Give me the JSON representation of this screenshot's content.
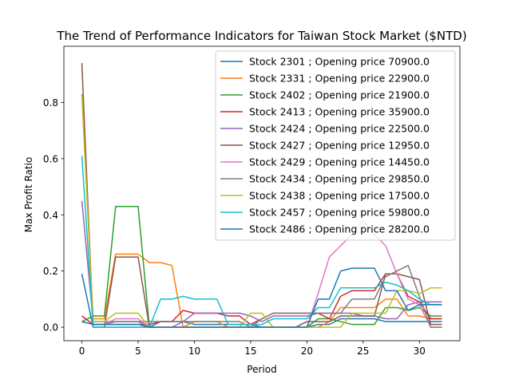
{
  "chart_data": {
    "type": "line",
    "title": "The Trend of Performance Indicators for Taiwan Stock Market ($NTD)",
    "xlabel": "Period",
    "ylabel": "Max Profit Ratio",
    "xlim": [
      -1.6,
      33.6
    ],
    "ylim": [
      -0.048,
      1.0
    ],
    "xticks": [
      0,
      5,
      10,
      15,
      20,
      25,
      30
    ],
    "yticks": [
      0.0,
      0.2,
      0.4,
      0.6,
      0.8
    ],
    "legend_position": "upper-right",
    "grid": false,
    "series": [
      {
        "name": "Stock 2301 ; Opening price 70900.0",
        "color": "#1f77b4",
        "values": [
          0.19,
          0,
          0,
          0,
          0,
          0,
          0,
          0.02,
          0.02,
          0.02,
          0.01,
          0.01,
          0.01,
          0.01,
          0.01,
          0.01,
          0,
          0,
          0,
          0,
          0,
          0.01,
          0.01,
          0.03,
          0.03,
          0.03,
          0.03,
          0.02,
          0.02,
          0.02,
          0.02,
          0.02,
          0.02
        ]
      },
      {
        "name": "Stock 2331 ; Opening price 22900.0",
        "color": "#ff7f0e",
        "values": [
          0.83,
          0.03,
          0.03,
          0.26,
          0.26,
          0.26,
          0.23,
          0.23,
          0.22,
          0,
          0.02,
          0.02,
          0.02,
          0,
          0,
          0,
          0,
          0,
          0,
          0,
          0,
          0,
          0.02,
          0.07,
          0.07,
          0.07,
          0.07,
          0.1,
          0.1,
          0.04,
          0.04,
          0.03,
          0.03
        ]
      },
      {
        "name": "Stock 2402 ; Opening price 21900.0",
        "color": "#2ca02c",
        "values": [
          0.02,
          0.04,
          0.04,
          0.43,
          0.43,
          0.43,
          0,
          0,
          0,
          0,
          0,
          0,
          0,
          0,
          0,
          0,
          0,
          0,
          0,
          0,
          0,
          0.03,
          0.03,
          0.02,
          0.01,
          0.01,
          0.01,
          0.07,
          0.07,
          0.06,
          0.07,
          0.04,
          0.04
        ]
      },
      {
        "name": "Stock 2413 ; Opening price 35900.0",
        "color": "#d62728",
        "values": [
          0.04,
          0.01,
          0.01,
          0.01,
          0.01,
          0.01,
          0.01,
          0.02,
          0.02,
          0.06,
          0.05,
          0.05,
          0.05,
          0.04,
          0.04,
          0.01,
          0.03,
          0.05,
          0.05,
          0.05,
          0.05,
          0.05,
          0.03,
          0.11,
          0.13,
          0.13,
          0.13,
          0.19,
          0.19,
          0.11,
          0.09,
          0.03,
          0.03
        ]
      },
      {
        "name": "Stock 2424 ; Opening price 22500.0",
        "color": "#9467bd",
        "values": [
          0.45,
          0.02,
          0.02,
          0.02,
          0.02,
          0.02,
          0,
          0,
          0,
          0.02,
          0.05,
          0.05,
          0.05,
          0.05,
          0.05,
          0.04,
          0.02,
          0.04,
          0.04,
          0.04,
          0.04,
          0.05,
          0.05,
          0.05,
          0.05,
          0.04,
          0.04,
          0.03,
          0.03,
          0.08,
          0.09,
          0.09,
          0.09
        ]
      },
      {
        "name": "Stock 2427 ; Opening price 12950.0",
        "color": "#8c564b",
        "values": [
          0.94,
          0,
          0,
          0.25,
          0.25,
          0.25,
          0,
          0,
          0,
          0,
          0,
          0,
          0,
          0,
          0,
          0,
          0,
          0,
          0,
          0,
          0.02,
          0.02,
          0.02,
          0.04,
          0.04,
          0.04,
          0.04,
          0.19,
          0.19,
          0.18,
          0.17,
          0.01,
          0.01
        ]
      },
      {
        "name": "Stock 2429 ; Opening price 14450.0",
        "color": "#e377c2",
        "values": [
          0.02,
          0.01,
          0.01,
          0.03,
          0.03,
          0.03,
          0,
          0,
          0,
          0,
          0,
          0,
          0,
          0,
          0,
          0,
          0,
          0,
          0,
          0,
          0,
          0.12,
          0.25,
          0.29,
          0.33,
          0.38,
          0.33,
          0.29,
          0.19,
          0.1,
          0.08,
          0,
          0
        ]
      },
      {
        "name": "Stock 2434 ; Opening price 29850.0",
        "color": "#7f7f7f",
        "values": [
          0.02,
          0.01,
          0.01,
          0.02,
          0.02,
          0.02,
          0.02,
          0.02,
          0.02,
          0.02,
          0.02,
          0.02,
          0.02,
          0.02,
          0.02,
          0,
          0.03,
          0.05,
          0.05,
          0.05,
          0.05,
          0.05,
          0.05,
          0.05,
          0.1,
          0.1,
          0.1,
          0.18,
          0.2,
          0.22,
          0.11,
          0,
          0
        ]
      },
      {
        "name": "Stock 2438 ; Opening price 17500.0",
        "color": "#bcbd22",
        "values": [
          0.83,
          0.02,
          0.02,
          0.05,
          0.05,
          0.05,
          0,
          0,
          0,
          0,
          0,
          0,
          0,
          0,
          0,
          0.05,
          0.05,
          0,
          0,
          0,
          0,
          0,
          0,
          0,
          0.05,
          0.05,
          0.05,
          0.05,
          0.13,
          0.13,
          0.12,
          0.14,
          0.14
        ]
      },
      {
        "name": "Stock 2457 ; Opening price 59800.0",
        "color": "#17becf",
        "values": [
          0.61,
          0,
          0,
          0,
          0,
          0,
          0,
          0.1,
          0.1,
          0.11,
          0.1,
          0.1,
          0.1,
          0.01,
          0.01,
          0.01,
          0.01,
          0.03,
          0.03,
          0.03,
          0.03,
          0.07,
          0.07,
          0.14,
          0.14,
          0.14,
          0.14,
          0.16,
          0.15,
          0.13,
          0.1,
          0.08,
          0.08
        ]
      },
      {
        "name": "Stock 2486 ; Opening price 28200.0",
        "color": "#1f77b4",
        "values": [
          0.02,
          0.01,
          0.01,
          0.01,
          0.01,
          0.01,
          0,
          0,
          0,
          0,
          0,
          0,
          0,
          0,
          0,
          0,
          0,
          0,
          0,
          0,
          0,
          0.1,
          0.1,
          0.2,
          0.21,
          0.21,
          0.21,
          0.13,
          0.13,
          0.06,
          0.08,
          0.08,
          0.08
        ]
      }
    ]
  }
}
